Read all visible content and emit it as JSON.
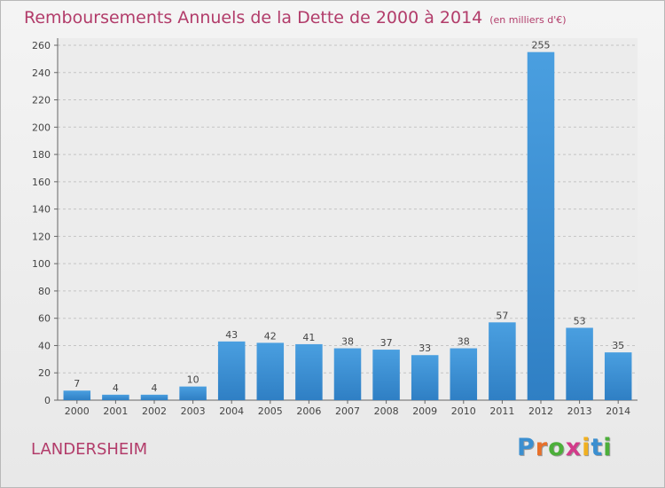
{
  "header": {
    "title": "Remboursements Annuels de la Dette de 2000 à 2014",
    "subtitle": "(en milliers d'€)"
  },
  "footer": {
    "commune": "LANDERSHEIM",
    "logo": [
      "P",
      "r",
      "o",
      "x",
      "i",
      "t",
      "i"
    ],
    "logo_colors": [
      "#3b8fd0",
      "#e8702a",
      "#4caf3a",
      "#d23b8a",
      "#f0b020",
      "#3b8fd0",
      "#4caf3a"
    ]
  },
  "chart_data": {
    "type": "bar",
    "categories": [
      "2000",
      "2001",
      "2002",
      "2003",
      "2004",
      "2005",
      "2006",
      "2007",
      "2008",
      "2009",
      "2010",
      "2011",
      "2012",
      "2013",
      "2014"
    ],
    "values": [
      7,
      4,
      4,
      10,
      43,
      42,
      41,
      38,
      37,
      33,
      38,
      57,
      255,
      53,
      35
    ],
    "data_labels": [
      "7",
      "4",
      "4",
      "10",
      "43",
      "42",
      "41",
      "38",
      "37",
      "33",
      "38",
      "57",
      "255",
      "53",
      "35"
    ],
    "yticks": [
      "0",
      "20",
      "40",
      "60",
      "80",
      "100",
      "120",
      "140",
      "160",
      "180",
      "200",
      "220",
      "240",
      "260"
    ],
    "ylim": [
      0,
      260
    ],
    "grid": true,
    "bar_color": "#4a9fe0",
    "bar_color_dark": "#2f7fc4"
  }
}
